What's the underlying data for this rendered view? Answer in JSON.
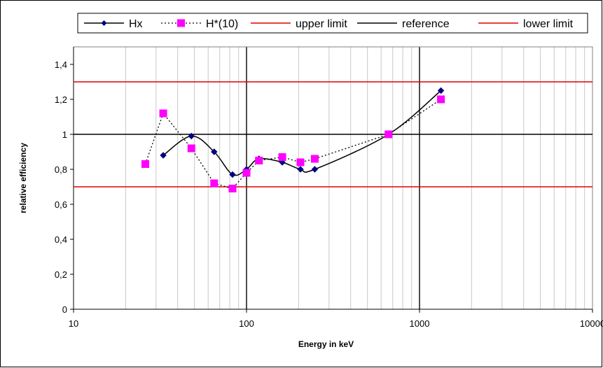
{
  "chart_data": {
    "type": "line",
    "title": "",
    "xlabel": "Energy in keV",
    "ylabel": "relative efficiency",
    "x_scale": "log",
    "xlim": [
      10,
      10000
    ],
    "ylim": [
      0,
      1.5
    ],
    "x_ticks": [
      10,
      100,
      1000,
      10000
    ],
    "x_tick_labels": [
      "10",
      "100",
      "1000",
      "10000"
    ],
    "y_ticks": [
      0,
      0.2,
      0.4,
      0.6,
      0.8,
      1,
      1.2,
      1.4
    ],
    "y_tick_labels": [
      "0",
      "0,2",
      "0,4",
      "0,6",
      "0,8",
      "1",
      "1,2",
      "1,4"
    ],
    "grid": "vertical minor lines on log x-axis; bold lines at decades",
    "legend_position": "top",
    "series": [
      {
        "name": "Hx",
        "color": "#000080",
        "line": "solid smoothed",
        "marker": "diamond",
        "x": [
          33,
          48,
          65,
          83,
          100,
          118,
          161,
          205,
          248,
          662,
          1330
        ],
        "y": [
          0.88,
          0.99,
          0.9,
          0.77,
          0.8,
          0.86,
          0.84,
          0.8,
          0.8,
          1.0,
          1.25
        ]
      },
      {
        "name": "H*(10)",
        "color": "#ff00ff",
        "line": "dotted",
        "marker": "square",
        "x": [
          26,
          33,
          48,
          65,
          83,
          100,
          118,
          161,
          205,
          248,
          662,
          1330
        ],
        "y": [
          0.83,
          1.12,
          0.92,
          0.72,
          0.69,
          0.78,
          0.85,
          0.87,
          0.84,
          0.86,
          1.0,
          1.2
        ]
      },
      {
        "name": "upper limit",
        "color": "#e00000",
        "type": "hline",
        "value": 1.3
      },
      {
        "name": "reference",
        "color": "#000000",
        "type": "hline",
        "value": 1.0
      },
      {
        "name": "lower limit",
        "color": "#e00000",
        "type": "hline",
        "value": 0.7
      }
    ]
  }
}
